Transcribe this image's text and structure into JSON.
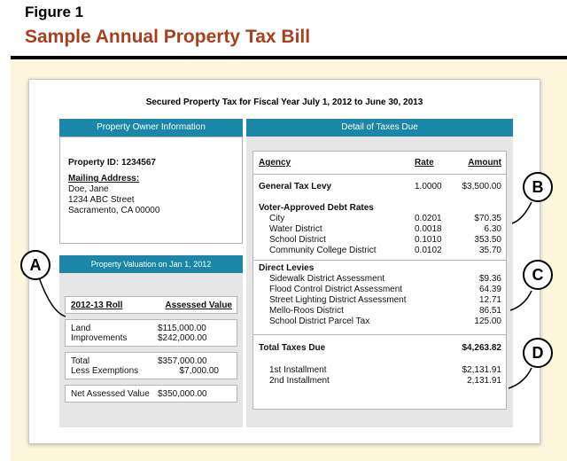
{
  "figure": {
    "label": "Figure 1",
    "title": "Sample Annual Property Tax Bill"
  },
  "bill": {
    "heading": "Secured Property Tax for Fiscal Year July 1, 2012 to June 30, 2013",
    "owner_panel": {
      "header": "Property Owner Information",
      "property_id": "Property ID: 1234567",
      "mailing_label": "Mailing Address:",
      "address": [
        "Doe, Jane",
        "1234 ABC Street",
        "Sacramento, CA 00000"
      ]
    },
    "valuation_panel": {
      "header": "Property Valuation on Jan 1, 2012",
      "col_roll": "2012-13 Roll",
      "col_value": "Assessed Value",
      "rows": [
        {
          "label": "Land",
          "value": "$115,000.00"
        },
        {
          "label": "Improvements",
          "value": "$242,000.00"
        },
        {
          "label": "Total",
          "value": "$357,000.00"
        },
        {
          "label": "Less Exemptions",
          "value": "$7,000.00"
        },
        {
          "label": "Net Assessed Value",
          "value": "$350,000.00"
        }
      ]
    },
    "taxes_panel": {
      "header": "Detail of Taxes Due",
      "col_agency": "Agency",
      "col_rate": "Rate",
      "col_amount": "Amount",
      "general_levy": {
        "label": "General Tax Levy",
        "rate": "1.0000",
        "amount": "$3,500.00"
      },
      "voter_debt": {
        "heading": "Voter-Approved Debt Rates",
        "rows": [
          {
            "label": "City",
            "rate": "0.0201",
            "amount": "$70.35"
          },
          {
            "label": "Water District",
            "rate": "0.0018",
            "amount": "6.30"
          },
          {
            "label": "School District",
            "rate": "0.1010",
            "amount": "353.50"
          },
          {
            "label": "Community College District",
            "rate": "0.0102",
            "amount": "35.70"
          }
        ]
      },
      "direct_levies": {
        "heading": "Direct Levies",
        "rows": [
          {
            "label": "Sidewalk District Assessment",
            "amount": "$9.36"
          },
          {
            "label": "Flood Control District Assessment",
            "amount": "64.39"
          },
          {
            "label": "Street Lighting District Assessment",
            "amount": "12.71"
          },
          {
            "label": "Mello-Roos District",
            "amount": "86.51"
          },
          {
            "label": "School District Parcel Tax",
            "amount": "125.00"
          }
        ]
      },
      "total": {
        "label": "Total Taxes Due",
        "amount": "$4,263.82"
      },
      "installments": [
        {
          "label": "1st Installment",
          "amount": "$2,131.91"
        },
        {
          "label": "2nd Installment",
          "amount": "2,131.91"
        }
      ]
    }
  },
  "callouts": [
    "A",
    "B",
    "C",
    "D"
  ]
}
